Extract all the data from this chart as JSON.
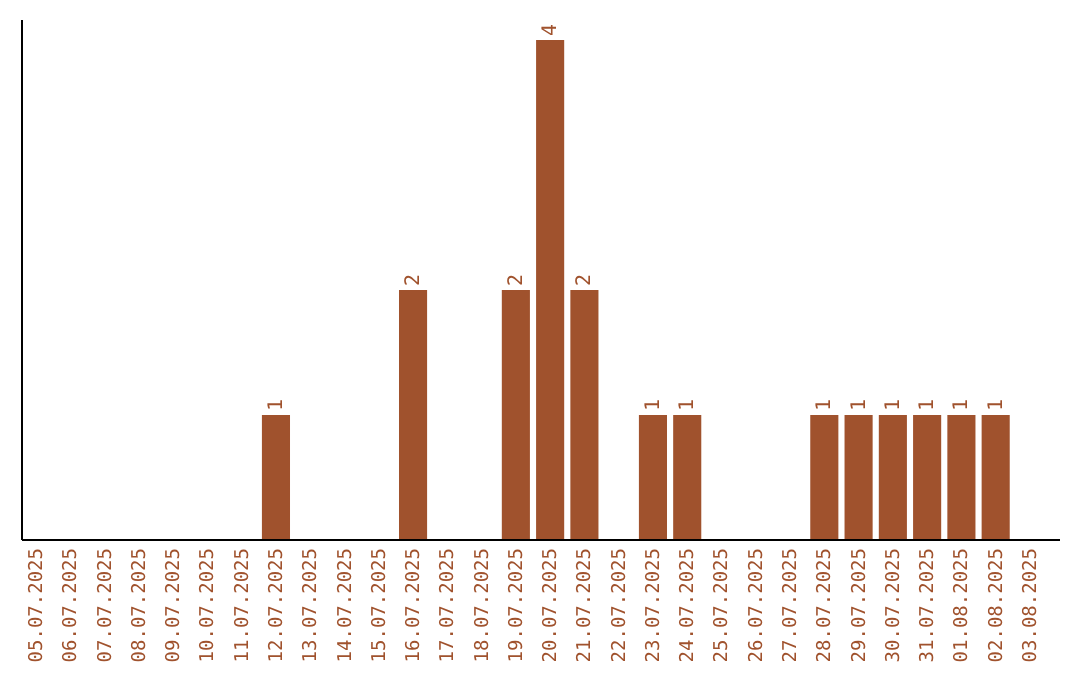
{
  "chart_data": {
    "type": "bar",
    "categories": [
      "05.07.2025",
      "06.07.2025",
      "07.07.2025",
      "08.07.2025",
      "09.07.2025",
      "10.07.2025",
      "11.07.2025",
      "12.07.2025",
      "13.07.2025",
      "14.07.2025",
      "15.07.2025",
      "16.07.2025",
      "17.07.2025",
      "18.07.2025",
      "19.07.2025",
      "20.07.2025",
      "21.07.2025",
      "22.07.2025",
      "23.07.2025",
      "24.07.2025",
      "25.07.2025",
      "26.07.2025",
      "27.07.2025",
      "28.07.2025",
      "29.07.2025",
      "30.07.2025",
      "31.07.2025",
      "01.08.2025",
      "02.08.2025",
      "03.08.2025"
    ],
    "values": [
      0,
      0,
      0,
      0,
      0,
      0,
      0,
      1,
      0,
      0,
      0,
      2,
      0,
      0,
      2,
      4,
      2,
      0,
      1,
      1,
      0,
      0,
      0,
      1,
      1,
      1,
      1,
      1,
      1,
      0
    ],
    "value_labels": [
      null,
      null,
      null,
      null,
      null,
      null,
      null,
      "1",
      null,
      null,
      null,
      "2",
      null,
      null,
      "2",
      "4",
      "2",
      null,
      "1",
      "1",
      null,
      null,
      null,
      "1",
      "1",
      "1",
      "1",
      "1",
      "1",
      null
    ],
    "color": "#a0522d",
    "tick_labels": "x"
  }
}
